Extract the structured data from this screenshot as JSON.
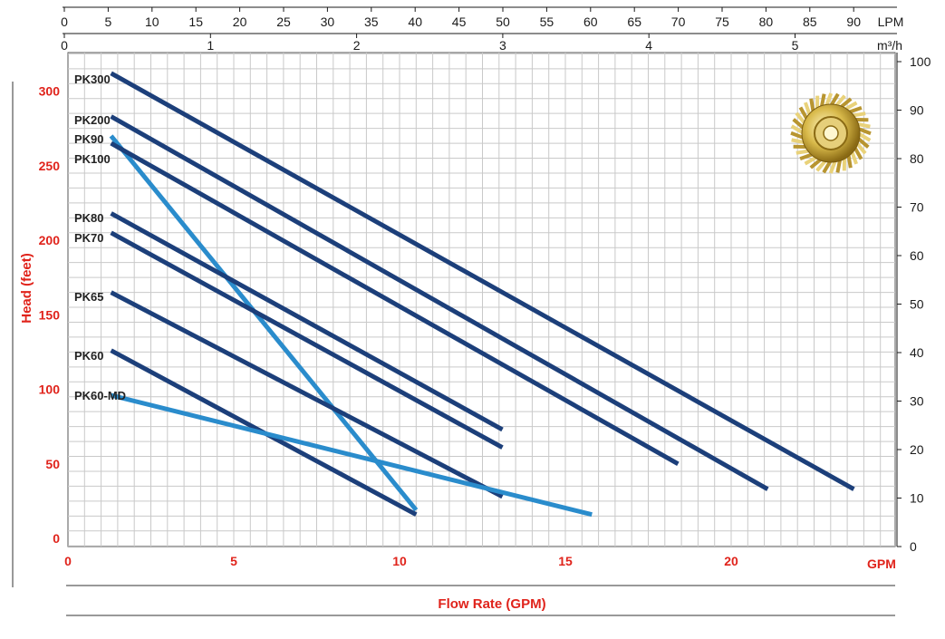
{
  "chart_data": {
    "type": "line",
    "title": "",
    "xlabel": "Flow Rate (GPM)",
    "ylabel": "Head (feet)",
    "x_unit": "GPM",
    "xlim": [
      0,
      25
    ],
    "ylim": [
      0,
      330
    ],
    "x_ticks": [
      0,
      5,
      10,
      15,
      20
    ],
    "y_ticks": [
      0,
      50,
      100,
      150,
      200,
      250,
      300
    ],
    "top_axes": [
      {
        "unit": "LPM",
        "ticks": [
          0,
          5,
          10,
          15,
          20,
          25,
          30,
          35,
          40,
          45,
          50,
          55,
          60,
          65,
          70,
          75,
          80,
          85,
          90
        ]
      },
      {
        "unit": "m³/h",
        "ticks": [
          0,
          1,
          2,
          3,
          4,
          5
        ]
      }
    ],
    "right_axis": {
      "unit": "",
      "ticks": [
        0,
        10,
        20,
        30,
        40,
        50,
        60,
        70,
        80,
        90,
        100
      ]
    },
    "grid": true,
    "series": [
      {
        "name": "PK300",
        "x": [
          1.3,
          23.7
        ],
        "y": [
          312,
          33
        ]
      },
      {
        "name": "PK200",
        "x": [
          1.3,
          21.1
        ],
        "y": [
          283,
          33
        ]
      },
      {
        "name": "PK90",
        "x": [
          1.3,
          10.5
        ],
        "y": [
          270,
          19
        ]
      },
      {
        "name": "PK100",
        "x": [
          1.3,
          18.4
        ],
        "y": [
          265,
          50
        ]
      },
      {
        "name": "PK80",
        "x": [
          1.3,
          13.1
        ],
        "y": [
          218,
          73
        ]
      },
      {
        "name": "PK70",
        "x": [
          1.3,
          13.1
        ],
        "y": [
          205,
          61
        ]
      },
      {
        "name": "PK65",
        "x": [
          1.3,
          13.1
        ],
        "y": [
          165,
          28
        ]
      },
      {
        "name": "PK60",
        "x": [
          1.3,
          10.5
        ],
        "y": [
          126,
          16
        ]
      },
      {
        "name": "PK60-MD",
        "x": [
          1.3,
          15.8
        ],
        "y": [
          96,
          16
        ]
      }
    ],
    "colors": {
      "dark_line": "#1c3f7a",
      "light_line": "#2a8ccc",
      "grid": "#c9c9c9",
      "red_text": "#e0231b"
    },
    "series_colors": {
      "PK300": "#1c3f7a",
      "PK200": "#1c3f7a",
      "PK90": "#2a8ccc",
      "PK100": "#1c3f7a",
      "PK80": "#1c3f7a",
      "PK70": "#1c3f7a",
      "PK65": "#1c3f7a",
      "PK60": "#1c3f7a",
      "PK60-MD": "#2a8ccc"
    },
    "image": {
      "icon": "impeller-icon"
    }
  }
}
